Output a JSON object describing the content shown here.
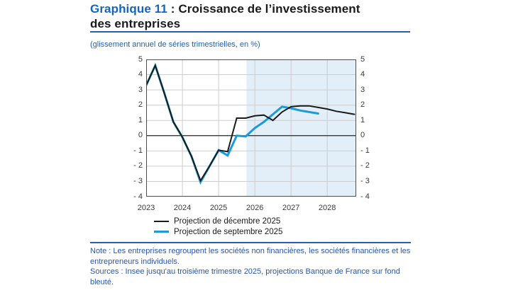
{
  "header": {
    "title_accent": "Graphique 11",
    "title_line1_rest": " : Croissance de l’investissement",
    "title_line2": "des entreprises",
    "subtitle": "(glissement annuel de séries trimestrielles, en %)"
  },
  "chart_data": {
    "type": "line",
    "x_start": 2023,
    "x_step": 0.25,
    "x_unit": "quarterly",
    "xlim": [
      2023,
      2028.8
    ],
    "ylim": [
      -4,
      5
    ],
    "x_ticks": [
      2023,
      2024,
      2025,
      2026,
      2027,
      2028
    ],
    "y_ticks": [
      5,
      4,
      3,
      2,
      1,
      0,
      -1,
      -2,
      -3,
      -4
    ],
    "y_tick_labels": [
      "5",
      "4",
      "3",
      "2",
      "1",
      "0",
      "- 1",
      "- 2",
      "- 3",
      "- 4"
    ],
    "grid": true,
    "frame_color": "#4d4d4d",
    "gridline_color": "#cdcdcd",
    "zero_line_color": "#262626",
    "projection_shading": {
      "x_from": 2025.77,
      "x_to": 2028.8,
      "color": "#e2eef8"
    },
    "legend_position": "below-left",
    "series": [
      {
        "name": "Projection de décembre 2025",
        "color": "#1a1a1a",
        "stroke_width": 2,
        "values": [
          3.3,
          4.6,
          2.8,
          0.9,
          -0.1,
          -1.35,
          -2.95,
          -2.0,
          -0.95,
          -1.05,
          1.15,
          1.15,
          1.3,
          1.35,
          1.0,
          1.55,
          1.9,
          1.95,
          1.95,
          1.85,
          1.75,
          1.6,
          1.5,
          1.4
        ]
      },
      {
        "name": "Projection de septembre 2025",
        "color": "#1a9cd9",
        "stroke_width": 3,
        "values": [
          3.3,
          4.6,
          2.8,
          0.9,
          -0.1,
          -1.35,
          -3.05,
          -2.0,
          -0.95,
          -1.3,
          0.0,
          -0.05,
          0.5,
          0.9,
          1.4,
          1.9,
          1.8,
          1.65,
          1.55,
          1.45
        ]
      }
    ]
  },
  "footer": {
    "note": "Note : Les entreprises regroupent les sociétés non financières, les sociétés financières et les entrepreneurs individuels.",
    "sources": "Sources : Insee jusqu'au troisième trimestre 2025, projections Banque de France sur fond bleuté."
  }
}
